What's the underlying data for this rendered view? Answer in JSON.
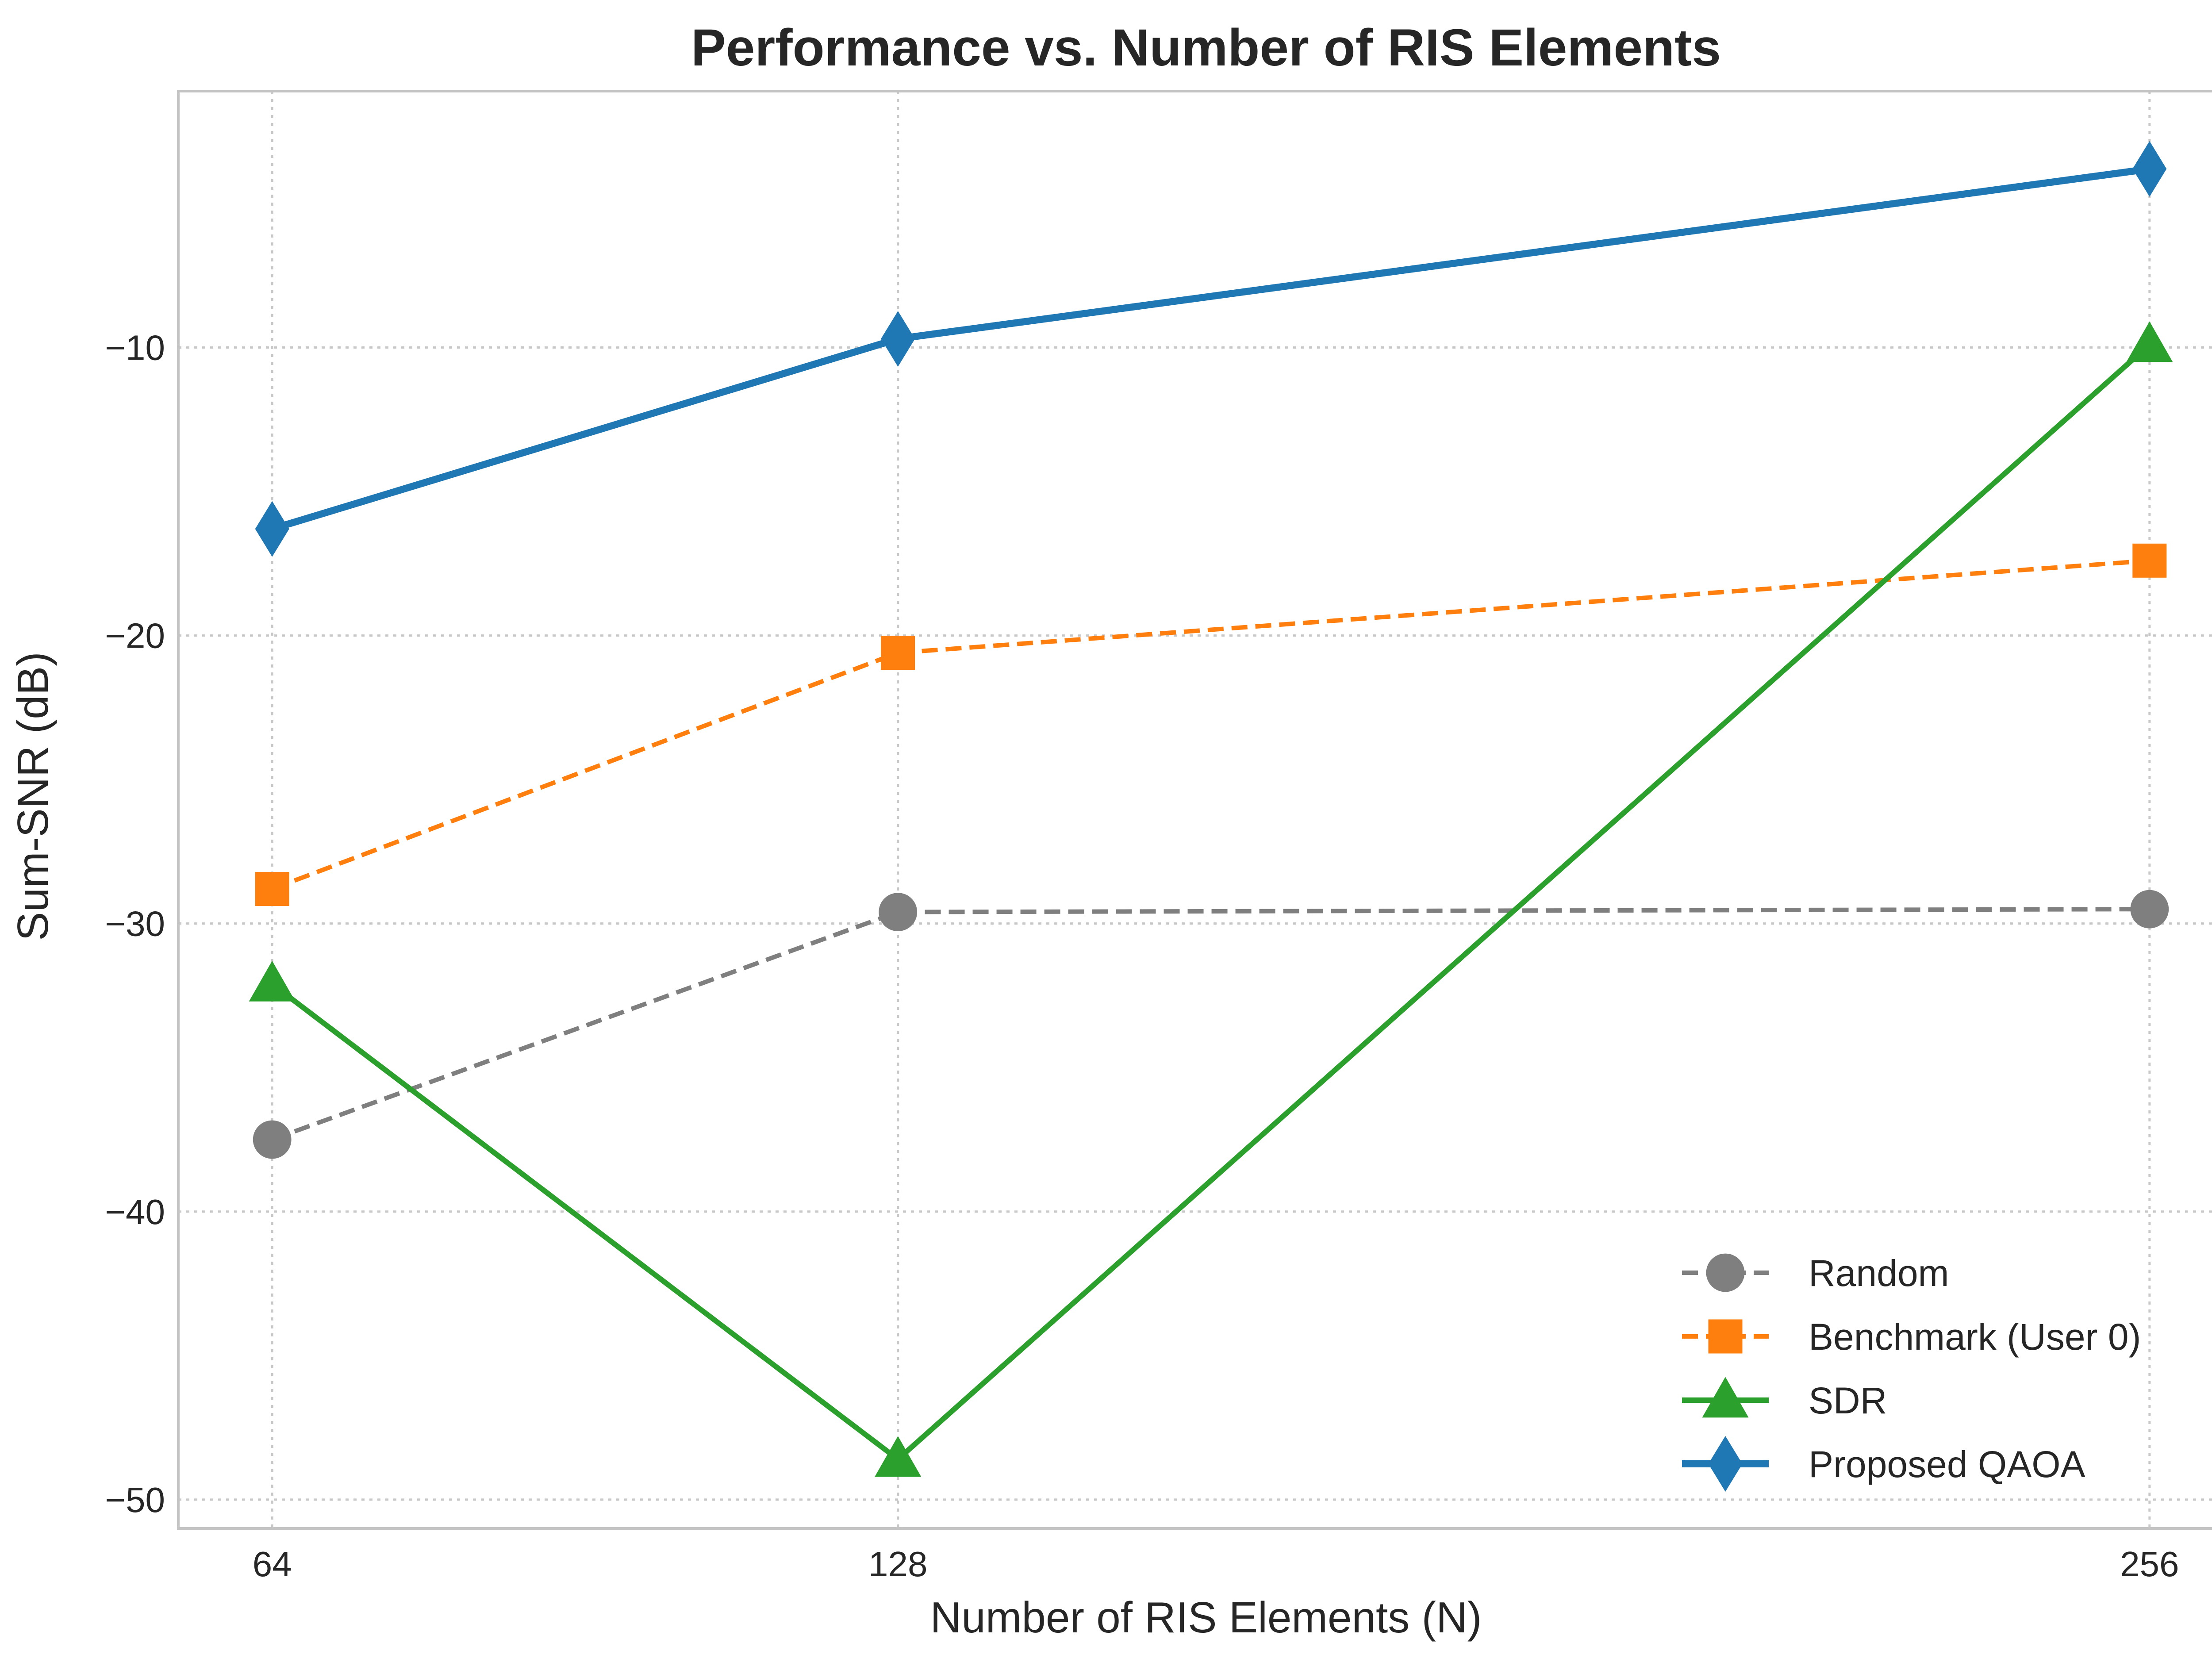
{
  "chart_data": {
    "type": "line",
    "title": "Performance vs. Number of RIS Elements",
    "xlabel": "Number of RIS Elements (N)",
    "ylabel": "Sum-SNR (dB)",
    "x": [
      64,
      128,
      256
    ],
    "x_tick_labels": [
      "64",
      "128",
      "256"
    ],
    "xlim": [
      54.4,
      265.6
    ],
    "ylim": [
      -51,
      -1.1
    ],
    "y_ticks": [
      -10,
      -20,
      -30,
      -40,
      -50
    ],
    "y_tick_labels": [
      "−10",
      "−20",
      "−30",
      "−40",
      "−50"
    ],
    "grid": true,
    "legend_position": "lower-right",
    "series": [
      {
        "name": "Random",
        "values": [
          -37.5,
          -29.6,
          -29.5
        ],
        "color": "#7f7f7f",
        "line_style": "dashed",
        "marker": "circle"
      },
      {
        "name": "Benchmark (User 0)",
        "values": [
          -28.8,
          -20.6,
          -17.4
        ],
        "color": "#ff7f0e",
        "line_style": "dashed",
        "marker": "square"
      },
      {
        "name": "SDR",
        "values": [
          -32.1,
          -48.6,
          -9.9
        ],
        "color": "#2ca02c",
        "line_style": "solid",
        "marker": "triangle"
      },
      {
        "name": "Proposed QAOA",
        "values": [
          -16.3,
          -9.7,
          -3.8
        ],
        "color": "#1f77b4",
        "line_style": "solid",
        "marker": "diamond"
      }
    ]
  }
}
